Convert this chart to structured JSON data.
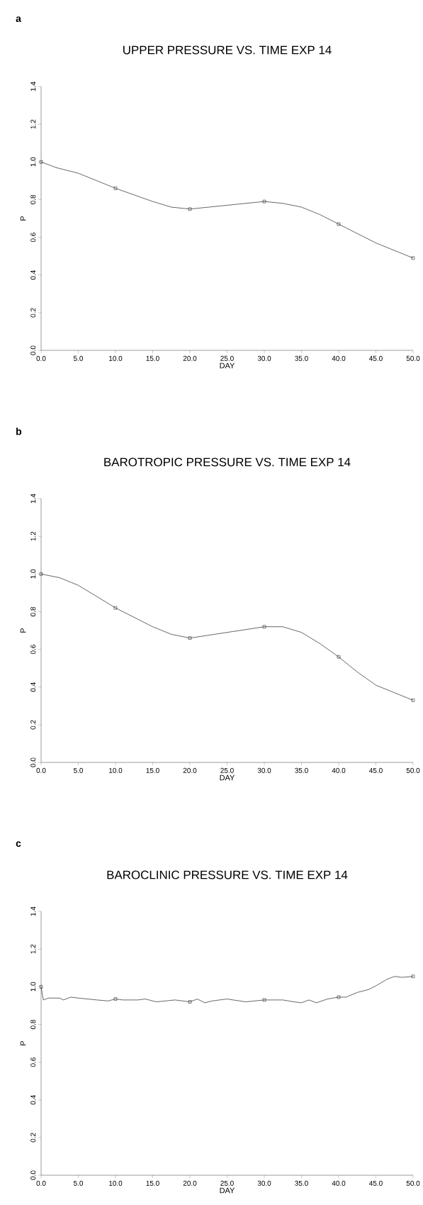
{
  "chart_data": [
    {
      "type": "line",
      "title": "UPPER PRESSURE VS. TIME  EXP 14",
      "xlabel": "DAY",
      "ylabel": "P",
      "annotations": [
        "a"
      ],
      "xlim": [
        0,
        50
      ],
      "ylim": [
        0,
        1.4
      ],
      "xticks": [
        {
          "value": 0,
          "label": "0.0"
        },
        {
          "value": 5,
          "label": "5.0"
        },
        {
          "value": 10,
          "label": "10.0"
        },
        {
          "value": 15,
          "label": "15.0"
        },
        {
          "value": 20,
          "label": "20.0"
        },
        {
          "value": 25,
          "label": "25.0"
        },
        {
          "value": 30,
          "label": "30.0"
        },
        {
          "value": 35,
          "label": "35.0"
        },
        {
          "value": 40,
          "label": "40.0"
        },
        {
          "value": 45,
          "label": "45.0"
        },
        {
          "value": 50,
          "label": "50.0"
        }
      ],
      "yticks": [
        {
          "value": 0,
          "label": "0.0"
        },
        {
          "value": 0.2,
          "label": "0.2"
        },
        {
          "value": 0.4,
          "label": "0.4"
        },
        {
          "value": 0.6,
          "label": "0.6"
        },
        {
          "value": 0.8,
          "label": "0.8"
        },
        {
          "value": 1.0,
          "label": "1.0"
        },
        {
          "value": 1.2,
          "label": "1.2"
        },
        {
          "value": 1.4,
          "label": "1.4"
        }
      ],
      "series": [
        {
          "color": "#000000",
          "marker": "none",
          "x": [
            0,
            2,
            5,
            7.5,
            10,
            15,
            17.5,
            20,
            25,
            27.5,
            30,
            32.5,
            35,
            37.5,
            40,
            42.5,
            45,
            47.5,
            50
          ],
          "values": [
            1.0,
            0.97,
            0.94,
            0.9,
            0.86,
            0.79,
            0.76,
            0.75,
            0.77,
            0.78,
            0.79,
            0.78,
            0.76,
            0.72,
            0.67,
            0.62,
            0.57,
            0.53,
            0.49
          ]
        },
        {
          "type": "scatter",
          "color": "#000000",
          "marker": "square",
          "x": [
            0,
            10,
            20,
            30,
            40,
            50
          ],
          "values": [
            1.0,
            0.86,
            0.75,
            0.79,
            0.67,
            0.49
          ]
        }
      ]
    },
    {
      "type": "line",
      "title": "BAROTROPIC PRESSURE VS. TIME  EXP 14",
      "xlabel": "DAY",
      "ylabel": "P",
      "annotations": [
        "b"
      ],
      "xlim": [
        0,
        50
      ],
      "ylim": [
        0,
        1.4
      ],
      "xticks": [
        {
          "value": 0,
          "label": "0.0"
        },
        {
          "value": 5,
          "label": "5.0"
        },
        {
          "value": 10,
          "label": "10.0"
        },
        {
          "value": 15,
          "label": "15.0"
        },
        {
          "value": 20,
          "label": "20.0"
        },
        {
          "value": 25,
          "label": "25.0"
        },
        {
          "value": 30,
          "label": "30.0"
        },
        {
          "value": 35,
          "label": "35.0"
        },
        {
          "value": 40,
          "label": "40.0"
        },
        {
          "value": 45,
          "label": "45.0"
        },
        {
          "value": 50,
          "label": "50.0"
        }
      ],
      "yticks": [
        {
          "value": 0,
          "label": "0.0"
        },
        {
          "value": 0.2,
          "label": "0.2"
        },
        {
          "value": 0.4,
          "label": "0.4"
        },
        {
          "value": 0.6,
          "label": "0.6"
        },
        {
          "value": 0.8,
          "label": "0.8"
        },
        {
          "value": 1.0,
          "label": "1.0"
        },
        {
          "value": 1.2,
          "label": "1.2"
        },
        {
          "value": 1.4,
          "label": "1.4"
        }
      ],
      "series": [
        {
          "color": "#000000",
          "marker": "none",
          "x": [
            0,
            2.5,
            5,
            7.5,
            10,
            12.5,
            15,
            17.5,
            20,
            25,
            30,
            32.5,
            35,
            37.5,
            40,
            42.5,
            45,
            47.5,
            50
          ],
          "values": [
            1.0,
            0.98,
            0.94,
            0.88,
            0.82,
            0.77,
            0.72,
            0.68,
            0.66,
            0.69,
            0.72,
            0.72,
            0.69,
            0.63,
            0.56,
            0.48,
            0.41,
            0.37,
            0.33
          ]
        },
        {
          "type": "scatter",
          "color": "#000000",
          "marker": "square",
          "x": [
            0,
            10,
            20,
            30,
            40,
            50
          ],
          "values": [
            1.0,
            0.82,
            0.66,
            0.72,
            0.56,
            0.33
          ]
        }
      ]
    },
    {
      "type": "line",
      "title": "BAROCLINIC PRESSURE VS. TIME  EXP 14",
      "xlabel": "DAY",
      "ylabel": "P",
      "annotations": [
        "c"
      ],
      "xlim": [
        0,
        50
      ],
      "ylim": [
        0,
        1.4
      ],
      "xticks": [
        {
          "value": 0,
          "label": "0.0"
        },
        {
          "value": 5,
          "label": "5.0"
        },
        {
          "value": 10,
          "label": "10.0"
        },
        {
          "value": 15,
          "label": "15.0"
        },
        {
          "value": 20,
          "label": "20.0"
        },
        {
          "value": 25,
          "label": "25.0"
        },
        {
          "value": 30,
          "label": "30.0"
        },
        {
          "value": 35,
          "label": "35.0"
        },
        {
          "value": 40,
          "label": "40.0"
        },
        {
          "value": 45,
          "label": "45.0"
        },
        {
          "value": 50,
          "label": "50.0"
        }
      ],
      "yticks": [
        {
          "value": 0,
          "label": "0.0"
        },
        {
          "value": 0.2,
          "label": "0.2"
        },
        {
          "value": 0.4,
          "label": "0.4"
        },
        {
          "value": 0.6,
          "label": "0.6"
        },
        {
          "value": 0.8,
          "label": "0.8"
        },
        {
          "value": 1.0,
          "label": "1.0"
        },
        {
          "value": 1.2,
          "label": "1.2"
        },
        {
          "value": 1.4,
          "label": "1.4"
        }
      ],
      "series": [
        {
          "color": "#000000",
          "marker": "none",
          "x": [
            0,
            0.3,
            1,
            2.5,
            3,
            4,
            5,
            7.5,
            9,
            10,
            11,
            13,
            14,
            15.5,
            18,
            20,
            21,
            22,
            23,
            25,
            27.5,
            30,
            32.5,
            34,
            35,
            36,
            37,
            38.5,
            40,
            41,
            42.5,
            44,
            45,
            46.5,
            47.5,
            48.5,
            50
          ],
          "values": [
            1.0,
            0.93,
            0.94,
            0.94,
            0.93,
            0.945,
            0.94,
            0.93,
            0.925,
            0.935,
            0.93,
            0.93,
            0.935,
            0.92,
            0.93,
            0.92,
            0.935,
            0.915,
            0.925,
            0.935,
            0.92,
            0.93,
            0.93,
            0.92,
            0.915,
            0.93,
            0.915,
            0.935,
            0.945,
            0.945,
            0.97,
            0.985,
            1.005,
            1.04,
            1.055,
            1.05,
            1.055
          ]
        },
        {
          "type": "scatter",
          "color": "#000000",
          "marker": "square",
          "x": [
            0,
            10,
            20,
            30,
            40,
            50
          ],
          "values": [
            1.0,
            0.935,
            0.92,
            0.93,
            0.945,
            1.055
          ]
        }
      ]
    }
  ]
}
